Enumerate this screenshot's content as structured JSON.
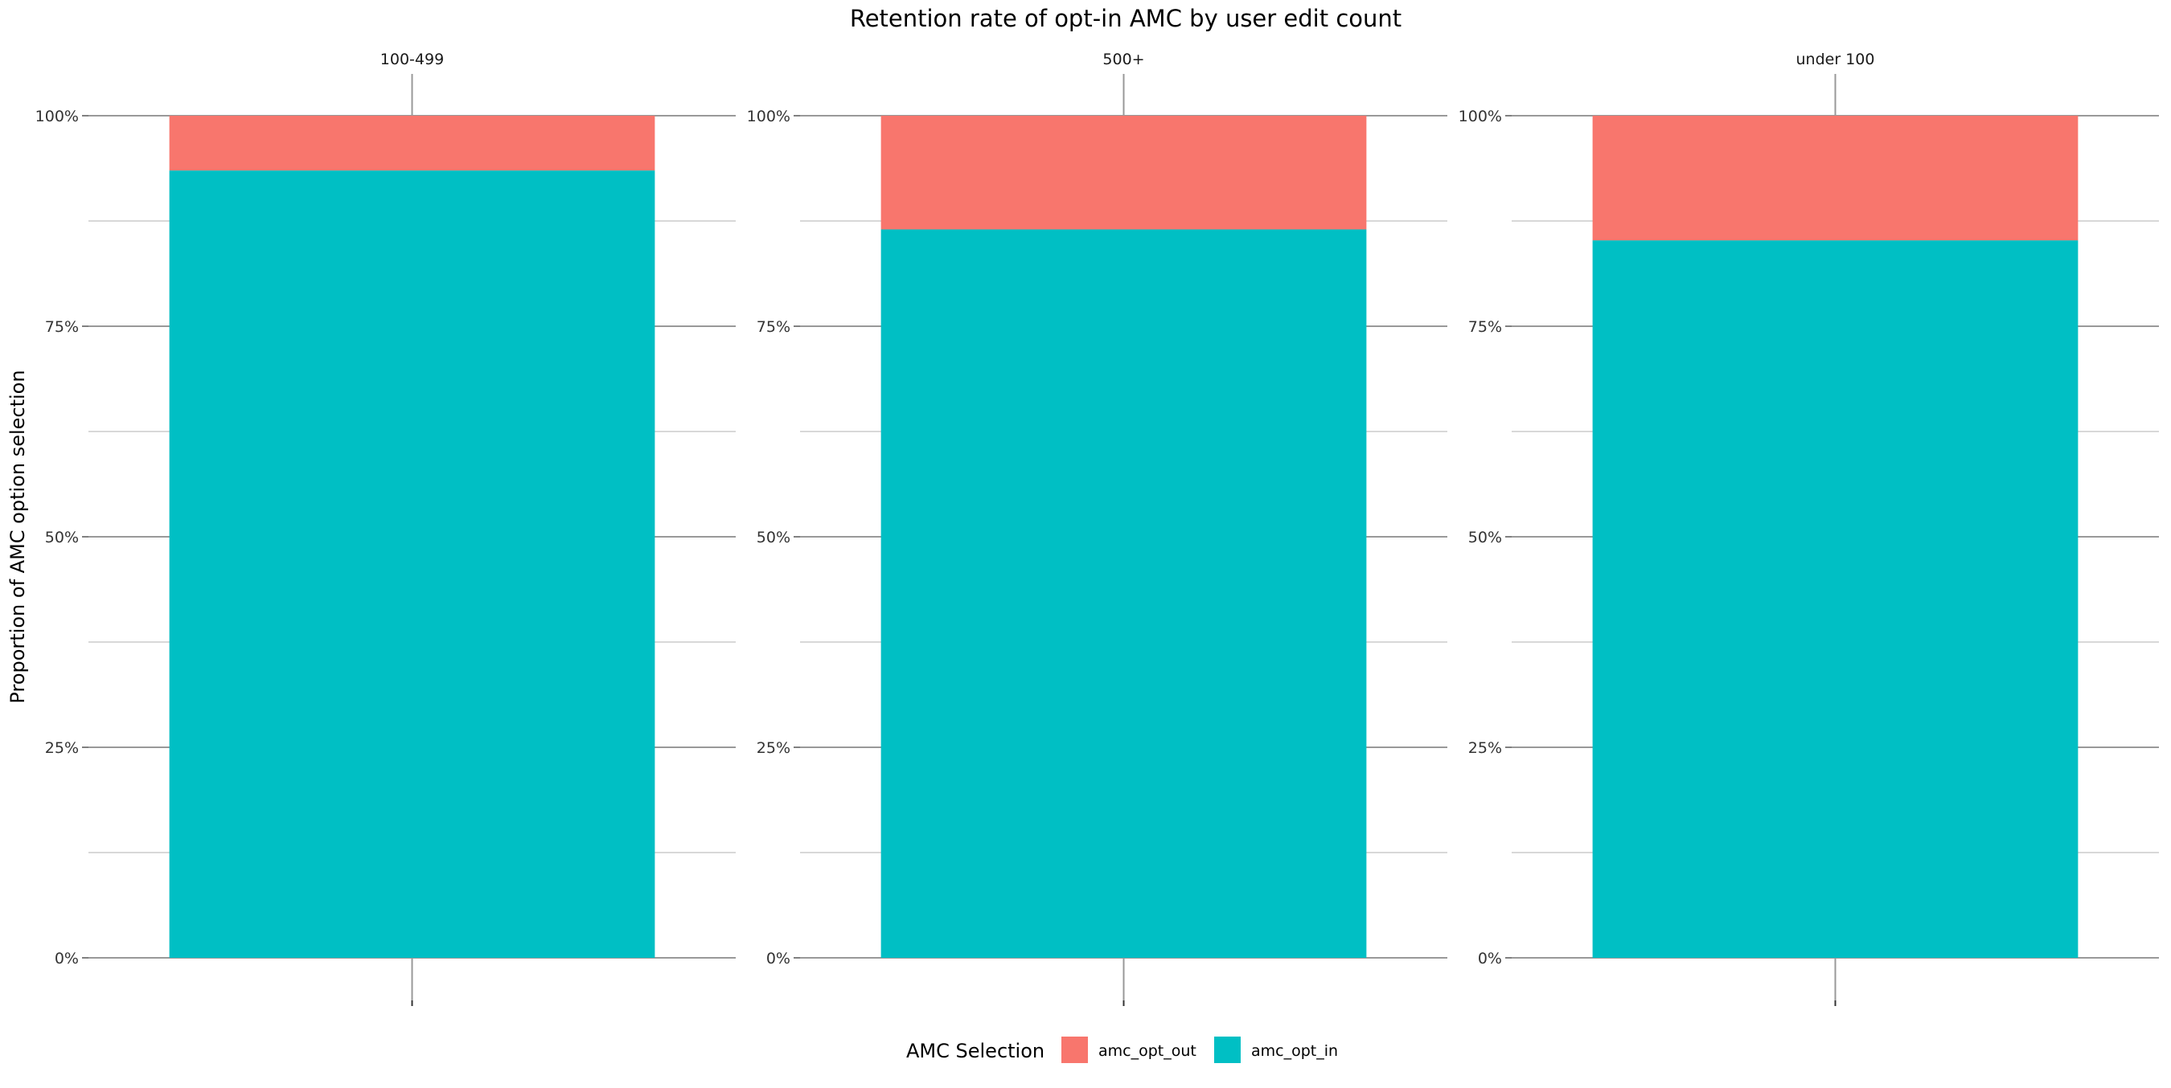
{
  "chart_data": {
    "type": "bar",
    "stacked": true,
    "title": "Retention rate of opt-in AMC by user edit count",
    "ylabel": "Proportion of AMC option selection",
    "xlabel": "",
    "ylim": [
      0,
      1
    ],
    "yticks": [
      0,
      0.25,
      0.5,
      0.75,
      1
    ],
    "ytick_labels": [
      "0%",
      "25%",
      "50%",
      "75%",
      "100%"
    ],
    "grid": true,
    "facets": [
      "100-499",
      "500+",
      "under 100"
    ],
    "series": [
      {
        "name": "amc_opt_out",
        "color": "#F8766D",
        "values": [
          0.065,
          0.135,
          0.148
        ]
      },
      {
        "name": "amc_opt_in",
        "color": "#00BFC4",
        "values": [
          0.935,
          0.865,
          0.852
        ]
      }
    ],
    "legend": {
      "title": "AMC Selection",
      "position": "bottom",
      "entries": [
        "amc_opt_out",
        "amc_opt_in"
      ]
    }
  }
}
